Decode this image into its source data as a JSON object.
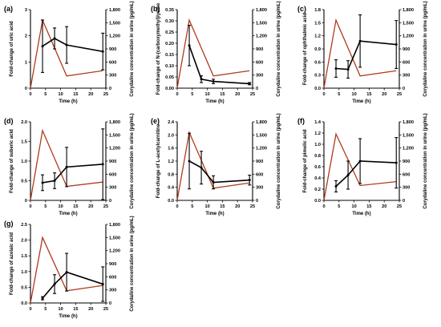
{
  "chart_data": [
    {
      "type": "line",
      "panel_label": "(a)",
      "ylabel": "Fold-change of uric acid",
      "y2label": "Corydaline concentration in urine (pg/mL)",
      "xlabel": "Time (h)",
      "xlim": [
        0,
        25
      ],
      "ylim": [
        0,
        3
      ],
      "y2lim": [
        0,
        1800
      ],
      "xticks": [
        "0",
        "5",
        "10",
        "15",
        "20",
        "25"
      ],
      "yticks": [
        "0",
        "1",
        "2",
        "3"
      ],
      "y2ticks": [
        "0",
        "300",
        "600",
        "900",
        "1,200",
        "1,500",
        "1,800"
      ],
      "series": [
        {
          "axis": "left",
          "color": "#000000",
          "x": [
            4,
            8,
            12,
            24
          ],
          "y": [
            1.6,
            1.9,
            1.65,
            1.4
          ],
          "err": [
            1.0,
            0.4,
            0.7,
            0.7
          ]
        },
        {
          "axis": "right",
          "color": "#b03a1e",
          "x": [
            0,
            4,
            12,
            24
          ],
          "y": [
            0,
            1560,
            280,
            400
          ]
        }
      ]
    },
    {
      "type": "line",
      "panel_label": "(b)",
      "ylabel": "Fold-change of N-(carboxymethyl)lysine",
      "y2label": "Corydaline concentration in urine (pg/mL)",
      "xlabel": "Time (h)",
      "xlim": [
        0,
        25
      ],
      "ylim": [
        0,
        0.35
      ],
      "y2lim": [
        0,
        1800
      ],
      "xticks": [
        "0",
        "5",
        "10",
        "15",
        "20",
        "25"
      ],
      "yticks": [
        "0.00",
        "0.05",
        "0.10",
        "0.15",
        "0.20",
        "0.25",
        "0.30",
        "0.35"
      ],
      "y2ticks": [
        "0",
        "300",
        "600",
        "900",
        "1,200",
        "1,500",
        "1,800"
      ],
      "series": [
        {
          "axis": "left",
          "color": "#000000",
          "x": [
            4,
            8,
            12,
            24
          ],
          "y": [
            0.19,
            0.04,
            0.03,
            0.02
          ],
          "err": [
            0.09,
            0.015,
            0.01,
            0.005
          ]
        },
        {
          "axis": "right",
          "color": "#b03a1e",
          "x": [
            0,
            4,
            12,
            24
          ],
          "y": [
            0,
            1560,
            280,
            400
          ]
        }
      ]
    },
    {
      "type": "line",
      "panel_label": "(c)",
      "ylabel": "Fold-change of ophthalmic acid",
      "y2label": "Corydaline concentration in urine (pg/mL)",
      "xlabel": "Time (h)",
      "xlim": [
        0,
        25
      ],
      "ylim": [
        0,
        1.8
      ],
      "y2lim": [
        0,
        1800
      ],
      "xticks": [
        "0",
        "5",
        "10",
        "15",
        "20",
        "25"
      ],
      "yticks": [
        "0.0",
        "0.3",
        "0.6",
        "0.9",
        "1.2",
        "1.5",
        "1.8"
      ],
      "y2ticks": [
        "0",
        "300",
        "600",
        "900",
        "1,200",
        "1,500",
        "1,800"
      ],
      "series": [
        {
          "axis": "left",
          "color": "#000000",
          "x": [
            4,
            8,
            12,
            24
          ],
          "y": [
            0.45,
            0.43,
            1.08,
            1.0
          ],
          "err": [
            0.2,
            0.2,
            0.6,
            0.55
          ]
        },
        {
          "axis": "right",
          "color": "#b03a1e",
          "x": [
            0,
            4,
            12,
            24
          ],
          "y": [
            0,
            1560,
            280,
            400
          ]
        }
      ]
    },
    {
      "type": "line",
      "panel_label": "(d)",
      "ylabel": "Fold-change of suberic acid",
      "y2label": "Corydaline concentration in urine (pg/mL)",
      "xlabel": "Time (h)",
      "xlim": [
        0,
        25
      ],
      "ylim": [
        0,
        2.0
      ],
      "y2lim": [
        0,
        1800
      ],
      "xticks": [
        "0",
        "5",
        "10",
        "15",
        "20",
        "25"
      ],
      "yticks": [
        "0",
        "0.5",
        "1.0",
        "1.5",
        "2.0"
      ],
      "y2ticks": [
        "0",
        "300",
        "600",
        "900",
        "1,200",
        "1,500",
        "1,800"
      ],
      "series": [
        {
          "axis": "left",
          "color": "#000000",
          "x": [
            4,
            8,
            12,
            24
          ],
          "y": [
            0.45,
            0.5,
            0.85,
            0.92
          ],
          "err": [
            0.2,
            0.2,
            0.5,
            0.9
          ]
        },
        {
          "axis": "right",
          "color": "#b03a1e",
          "x": [
            0,
            4,
            12,
            24
          ],
          "y": [
            0,
            1600,
            320,
            420
          ]
        }
      ]
    },
    {
      "type": "line",
      "panel_label": "(e)",
      "ylabel": "Fold-change of L-acetylcarnitine",
      "y2label": "Corydaline concentration in urine (pg/mL)",
      "xlabel": "Time (h)",
      "xlim": [
        0,
        25
      ],
      "ylim": [
        0,
        2.4
      ],
      "y2lim": [
        0,
        1800
      ],
      "xticks": [
        "0",
        "5",
        "10",
        "15",
        "20",
        "25"
      ],
      "yticks": [
        "0.0",
        "0.4",
        "0.8",
        "1.2",
        "1.6",
        "2.0",
        "2.4"
      ],
      "y2ticks": [
        "0",
        "300",
        "600",
        "900",
        "1,200",
        "1,500",
        "1,800"
      ],
      "series": [
        {
          "axis": "left",
          "color": "#000000",
          "x": [
            4,
            8,
            12,
            24
          ],
          "y": [
            1.2,
            1.0,
            0.55,
            0.62
          ],
          "err": [
            0.85,
            0.5,
            0.2,
            0.15
          ]
        },
        {
          "axis": "right",
          "color": "#b03a1e",
          "x": [
            0,
            4,
            12,
            24
          ],
          "y": [
            0,
            1560,
            280,
            400
          ]
        }
      ]
    },
    {
      "type": "line",
      "panel_label": "(f)",
      "ylabel": "Fold-change of pimelic acid",
      "y2label": "Corydaline concentration in urine (pg/mL)",
      "xlabel": "Time (h)",
      "xlim": [
        0,
        25
      ],
      "ylim": [
        0,
        1.4
      ],
      "y2lim": [
        0,
        1800
      ],
      "xticks": [
        "0",
        "5",
        "10",
        "15",
        "20",
        "25"
      ],
      "yticks": [
        "0.0",
        "0.2",
        "0.4",
        "0.6",
        "0.8",
        "1.0",
        "1.2",
        "1.4"
      ],
      "y2ticks": [
        "0",
        "300",
        "600",
        "900",
        "1,200",
        "1,500",
        "1,800"
      ],
      "series": [
        {
          "axis": "left",
          "color": "#000000",
          "x": [
            4,
            8,
            12,
            24
          ],
          "y": [
            0.25,
            0.45,
            0.7,
            0.67
          ],
          "err": [
            0.1,
            0.25,
            0.4,
            0.45
          ]
        },
        {
          "axis": "right",
          "color": "#b03a1e",
          "x": [
            0,
            4,
            12,
            24
          ],
          "y": [
            0,
            1520,
            340,
            430
          ]
        }
      ]
    },
    {
      "type": "line",
      "panel_label": "(g)",
      "ylabel": "Fold-change of azelaic acid",
      "y2label": "Corydaline concentration in urine (pg/mL)",
      "xlabel": "Time (h)",
      "xlim": [
        0,
        25
      ],
      "ylim": [
        0,
        2.5
      ],
      "y2lim": [
        0,
        1800
      ],
      "xticks": [
        "0",
        "5",
        "10",
        "15",
        "20",
        "25"
      ],
      "yticks": [
        "0.0",
        "0.5",
        "1.0",
        "1.5",
        "2.0",
        "2.5"
      ],
      "y2ticks": [
        "0",
        "300",
        "600",
        "900",
        "1,200",
        "1,500",
        "1,800"
      ],
      "series": [
        {
          "axis": "left",
          "color": "#000000",
          "x": [
            4,
            8,
            12,
            24
          ],
          "y": [
            0.15,
            0.6,
            0.98,
            0.6
          ],
          "err": [
            0.05,
            0.3,
            0.6,
            0.55
          ]
        },
        {
          "axis": "right",
          "color": "#b03a1e",
          "x": [
            0,
            4,
            12,
            24
          ],
          "y": [
            0,
            1500,
            280,
            400
          ]
        }
      ]
    }
  ]
}
